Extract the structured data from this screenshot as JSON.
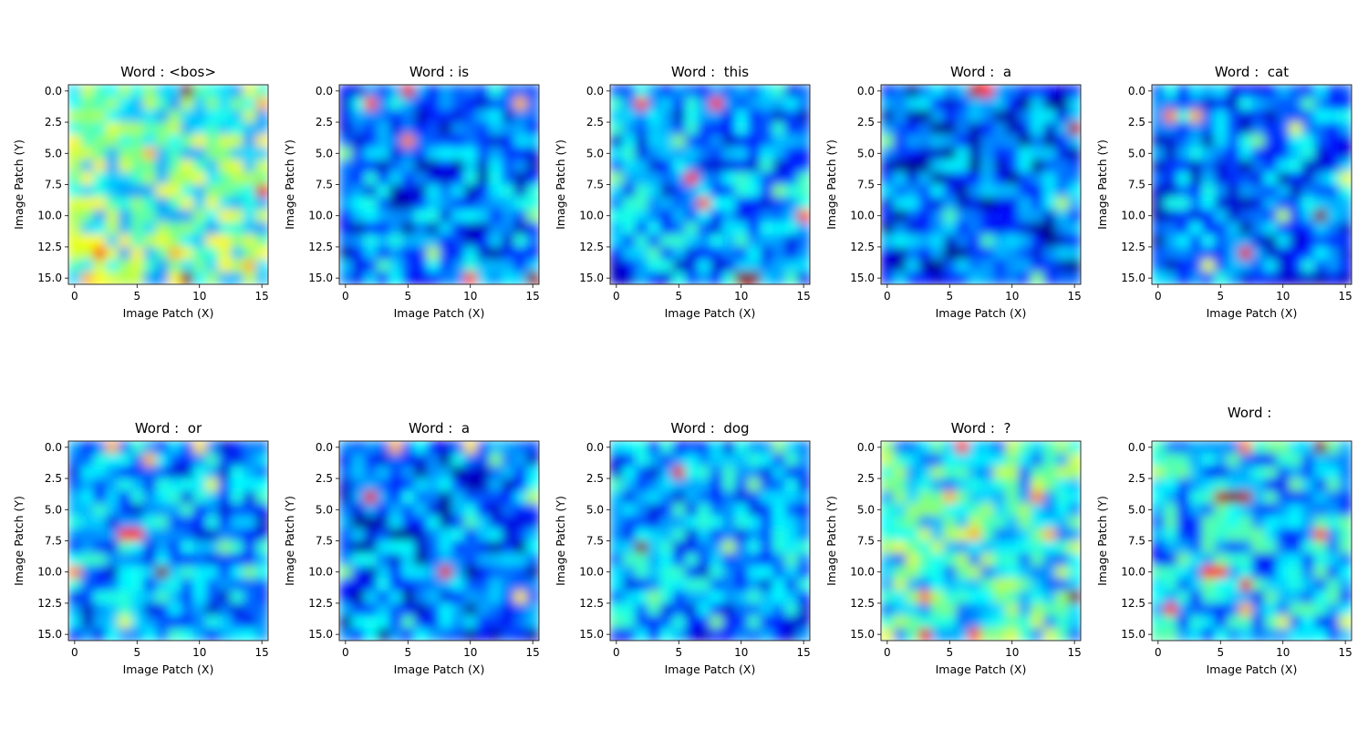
{
  "figure": {
    "cmap": "jet",
    "colors": {
      "jet_low": "#00007f",
      "jet_mid": "#7fff7f",
      "jet_high": "#7f0000",
      "axis": "#000000",
      "background": "#ffffff"
    }
  },
  "chart_data": [
    {
      "type": "heatmap",
      "title": "Word : <bos>",
      "xlabel": "Image Patch (X)",
      "ylabel": "Image Patch (Y)",
      "xticks": [
        "0",
        "5",
        "10",
        "15"
      ],
      "yticks": [
        "0.0",
        "2.5",
        "5.0",
        "7.5",
        "10.0",
        "12.5",
        "15.0"
      ],
      "xlim": [
        -0.5,
        15.5
      ],
      "ylim": [
        15.5,
        -0.5
      ],
      "grid_size": [
        16,
        16
      ],
      "hotspots": [
        [
          9,
          0,
          1.0
        ],
        [
          9,
          15,
          1.0
        ],
        [
          15,
          8,
          0.9
        ],
        [
          2,
          13,
          0.8
        ],
        [
          6,
          5,
          0.7
        ],
        [
          8,
          13,
          0.7
        ],
        [
          15,
          1,
          0.7
        ],
        [
          14,
          14,
          0.7
        ],
        [
          3,
          3,
          0.6
        ],
        [
          1,
          15,
          0.7
        ],
        [
          12,
          13,
          0.6
        ],
        [
          0,
          12,
          0.6
        ]
      ],
      "base_level": 0.45
    },
    {
      "type": "heatmap",
      "title": "Word : is",
      "xlabel": "Image Patch (X)",
      "ylabel": "Image Patch (Y)",
      "xticks": [
        "0",
        "5",
        "10",
        "15"
      ],
      "yticks": [
        "0.0",
        "2.5",
        "5.0",
        "7.5",
        "10.0",
        "12.5",
        "15.0"
      ],
      "xlim": [
        -0.5,
        15.5
      ],
      "ylim": [
        15.5,
        -0.5
      ],
      "grid_size": [
        16,
        16
      ],
      "hotspots": [
        [
          5,
          0,
          0.9
        ],
        [
          2,
          1,
          0.8
        ],
        [
          14,
          1,
          0.7
        ],
        [
          5,
          4,
          0.75
        ],
        [
          10,
          15,
          0.8
        ],
        [
          15,
          15,
          1.0
        ],
        [
          0,
          5,
          0.5
        ],
        [
          7,
          13,
          0.55
        ],
        [
          15,
          10,
          0.5
        ],
        [
          3,
          14,
          0.45
        ]
      ],
      "base_level": 0.22
    },
    {
      "type": "heatmap",
      "title": "Word :  this",
      "xlabel": "Image Patch (X)",
      "ylabel": "Image Patch (Y)",
      "xticks": [
        "0",
        "5",
        "10",
        "15"
      ],
      "yticks": [
        "0.0",
        "2.5",
        "5.0",
        "7.5",
        "10.0",
        "12.5",
        "15.0"
      ],
      "xlim": [
        -0.5,
        15.5
      ],
      "ylim": [
        15.5,
        -0.5
      ],
      "grid_size": [
        16,
        16
      ],
      "hotspots": [
        [
          2,
          1,
          0.8
        ],
        [
          8,
          1,
          0.85
        ],
        [
          6,
          7,
          0.85
        ],
        [
          7,
          9,
          0.8
        ],
        [
          10,
          15,
          1.0
        ],
        [
          11,
          15,
          1.0
        ],
        [
          15,
          10,
          0.8
        ],
        [
          0,
          7,
          0.5
        ],
        [
          5,
          4,
          0.5
        ],
        [
          13,
          8,
          0.5
        ],
        [
          3,
          13,
          0.45
        ]
      ],
      "base_level": 0.25
    },
    {
      "type": "heatmap",
      "title": "Word :  a",
      "xlabel": "Image Patch (X)",
      "ylabel": "Image Patch (Y)",
      "xticks": [
        "0",
        "5",
        "10",
        "15"
      ],
      "yticks": [
        "0.0",
        "2.5",
        "5.0",
        "7.5",
        "10.0",
        "12.5",
        "15.0"
      ],
      "xlim": [
        -0.5,
        15.5
      ],
      "ylim": [
        15.5,
        -0.5
      ],
      "grid_size": [
        16,
        16
      ],
      "hotspots": [
        [
          7,
          0,
          0.95
        ],
        [
          8,
          0,
          0.85
        ],
        [
          15,
          3,
          0.95
        ],
        [
          0,
          4,
          0.5
        ],
        [
          14,
          9,
          0.55
        ],
        [
          12,
          15,
          0.5
        ],
        [
          5,
          10,
          0.45
        ],
        [
          8,
          12,
          0.45
        ]
      ],
      "base_level": 0.18
    },
    {
      "type": "heatmap",
      "title": "Word :  cat",
      "xlabel": "Image Patch (X)",
      "ylabel": "Image Patch (Y)",
      "xticks": [
        "0",
        "5",
        "10",
        "15"
      ],
      "yticks": [
        "0.0",
        "2.5",
        "5.0",
        "7.5",
        "10.0",
        "12.5",
        "15.0"
      ],
      "xlim": [
        -0.5,
        15.5
      ],
      "ylim": [
        15.5,
        -0.5
      ],
      "grid_size": [
        16,
        16
      ],
      "hotspots": [
        [
          13,
          10,
          1.0
        ],
        [
          7,
          13,
          0.9
        ],
        [
          1,
          2,
          0.75
        ],
        [
          3,
          2,
          0.7
        ],
        [
          11,
          3,
          0.6
        ],
        [
          15,
          7,
          0.6
        ],
        [
          4,
          14,
          0.6
        ],
        [
          8,
          4,
          0.5
        ],
        [
          10,
          10,
          0.55
        ],
        [
          12,
          1,
          0.45
        ]
      ],
      "base_level": 0.22
    },
    {
      "type": "heatmap",
      "title": "Word :  or",
      "xlabel": "Image Patch (X)",
      "ylabel": "Image Patch (Y)",
      "xticks": [
        "0",
        "5",
        "10",
        "15"
      ],
      "yticks": [
        "0.0",
        "2.5",
        "5.0",
        "7.5",
        "10.0",
        "12.5",
        "15.0"
      ],
      "xlim": [
        -0.5,
        15.5
      ],
      "ylim": [
        15.5,
        -0.5
      ],
      "grid_size": [
        16,
        16
      ],
      "hotspots": [
        [
          7,
          10,
          1.0
        ],
        [
          4,
          7,
          0.85
        ],
        [
          5,
          7,
          0.85
        ],
        [
          0,
          10,
          0.75
        ],
        [
          3,
          0,
          0.7
        ],
        [
          6,
          1,
          0.7
        ],
        [
          10,
          0,
          0.65
        ],
        [
          11,
          3,
          0.6
        ],
        [
          4,
          14,
          0.6
        ],
        [
          12,
          8,
          0.5
        ],
        [
          14,
          10,
          0.5
        ]
      ],
      "base_level": 0.25
    },
    {
      "type": "heatmap",
      "title": "Word :  a",
      "xlabel": "Image Patch (X)",
      "ylabel": "Image Patch (Y)",
      "xticks": [
        "0",
        "5",
        "10",
        "15"
      ],
      "yticks": [
        "0.0",
        "2.5",
        "5.0",
        "7.5",
        "10.0",
        "12.5",
        "15.0"
      ],
      "xlim": [
        -0.5,
        15.5
      ],
      "ylim": [
        15.5,
        -0.5
      ],
      "grid_size": [
        16,
        16
      ],
      "hotspots": [
        [
          2,
          4,
          0.9
        ],
        [
          8,
          10,
          0.9
        ],
        [
          4,
          0,
          0.7
        ],
        [
          10,
          0,
          0.65
        ],
        [
          14,
          12,
          0.65
        ],
        [
          15,
          4,
          0.55
        ],
        [
          0,
          10,
          0.5
        ],
        [
          12,
          1,
          0.5
        ],
        [
          5,
          14,
          0.45
        ],
        [
          10,
          6,
          0.45
        ]
      ],
      "base_level": 0.2
    },
    {
      "type": "heatmap",
      "title": "Word :  dog",
      "xlabel": "Image Patch (X)",
      "ylabel": "Image Patch (Y)",
      "xticks": [
        "0",
        "5",
        "10",
        "15"
      ],
      "yticks": [
        "0.0",
        "2.5",
        "5.0",
        "7.5",
        "10.0",
        "12.5",
        "15.0"
      ],
      "xlim": [
        -0.5,
        15.5
      ],
      "ylim": [
        15.5,
        -0.5
      ],
      "grid_size": [
        16,
        16
      ],
      "hotspots": [
        [
          2,
          8,
          1.0
        ],
        [
          5,
          2,
          0.9
        ],
        [
          9,
          8,
          0.55
        ],
        [
          11,
          3,
          0.5
        ],
        [
          13,
          0,
          0.5
        ],
        [
          3,
          12,
          0.5
        ],
        [
          8,
          14,
          0.5
        ],
        [
          14,
          9,
          0.45
        ],
        [
          0,
          14,
          0.45
        ]
      ],
      "base_level": 0.25
    },
    {
      "type": "heatmap",
      "title": "Word :  ?",
      "xlabel": "Image Patch (X)",
      "ylabel": "Image Patch (Y)",
      "xticks": [
        "0",
        "5",
        "10",
        "15"
      ],
      "yticks": [
        "0.0",
        "2.5",
        "5.0",
        "7.5",
        "10.0",
        "12.5",
        "15.0"
      ],
      "xlim": [
        -0.5,
        15.5
      ],
      "ylim": [
        15.5,
        -0.5
      ],
      "grid_size": [
        16,
        16
      ],
      "hotspots": [
        [
          15,
          12,
          1.0
        ],
        [
          6,
          0,
          0.85
        ],
        [
          3,
          15,
          0.9
        ],
        [
          7,
          15,
          0.8
        ],
        [
          3,
          12,
          0.75
        ],
        [
          5,
          4,
          0.7
        ],
        [
          12,
          4,
          0.75
        ],
        [
          7,
          7,
          0.7
        ],
        [
          13,
          7,
          0.7
        ],
        [
          1,
          8,
          0.6
        ],
        [
          9,
          11,
          0.55
        ],
        [
          0,
          15,
          0.6
        ]
      ],
      "base_level": 0.4
    },
    {
      "type": "heatmap",
      "title": "Word : ",
      "xlabel": "Image Patch (X)",
      "ylabel": "Image Patch (Y)",
      "xticks": [
        "0",
        "5",
        "10",
        "15"
      ],
      "yticks": [
        "0.0",
        "2.5",
        "5.0",
        "7.5",
        "10.0",
        "12.5",
        "15.0"
      ],
      "xlim": [
        -0.5,
        15.5
      ],
      "ylim": [
        15.5,
        -0.5
      ],
      "grid_size": [
        16,
        16
      ],
      "hotspots": [
        [
          5,
          4,
          0.95
        ],
        [
          6,
          4,
          1.0
        ],
        [
          7,
          4,
          0.95
        ],
        [
          13,
          0,
          1.0
        ],
        [
          7,
          11,
          0.9
        ],
        [
          1,
          13,
          0.85
        ],
        [
          4,
          10,
          0.85
        ],
        [
          5,
          10,
          0.85
        ],
        [
          13,
          7,
          0.8
        ],
        [
          7,
          13,
          0.7
        ],
        [
          7,
          0,
          0.75
        ],
        [
          0,
          2,
          0.55
        ],
        [
          10,
          14,
          0.6
        ],
        [
          15,
          14,
          0.6
        ]
      ],
      "base_level": 0.3
    }
  ]
}
